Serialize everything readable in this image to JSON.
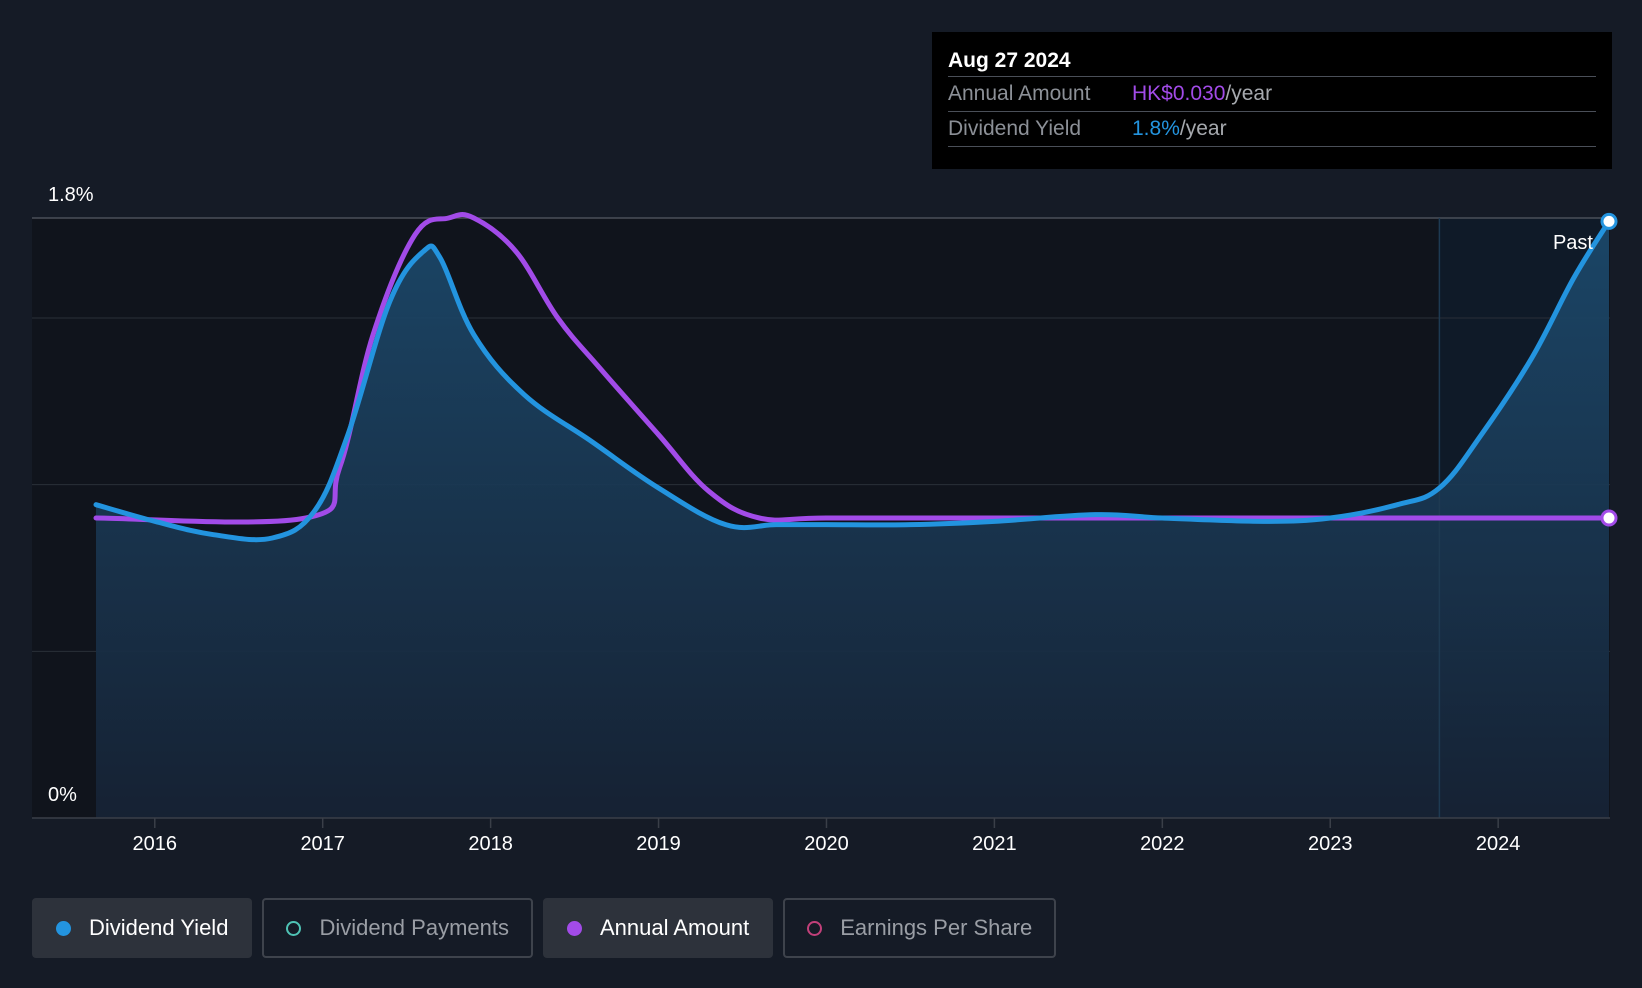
{
  "tooltip": {
    "date": "Aug 27 2024",
    "annual_label": "Annual Amount",
    "annual_value": "HK$0.030",
    "annual_unit": "/year",
    "yield_label": "Dividend Yield",
    "yield_value": "1.8%",
    "yield_unit": "/year"
  },
  "past_label": "Past",
  "legend": [
    {
      "label": "Dividend Yield",
      "color": "#2394df",
      "active": true,
      "filled": true
    },
    {
      "label": "Dividend Payments",
      "color": "#4fc3b5",
      "active": false,
      "filled": false
    },
    {
      "label": "Annual Amount",
      "color": "#a24be8",
      "active": true,
      "filled": true
    },
    {
      "label": "Earnings Per Share",
      "color": "#c2407a",
      "active": false,
      "filled": false
    }
  ],
  "colors": {
    "yield": "#2394df",
    "annual": "#a24be8",
    "background": "#151b26",
    "past_shade": "#0f1a28"
  },
  "chart_data": {
    "type": "line",
    "ylim": [
      0,
      1.8
    ],
    "xlim": [
      2015.65,
      2024.66
    ],
    "y_tick_labels": [
      "1.8%",
      "0%"
    ],
    "y_ticks": [
      1.8,
      0
    ],
    "gridlines": [
      1.8,
      1.5,
      1.0,
      0.5
    ],
    "x_ticks": [
      2016,
      2017,
      2018,
      2019,
      2020,
      2021,
      2022,
      2023,
      2024
    ],
    "x_tick_labels": [
      "2016",
      "2017",
      "2018",
      "2019",
      "2020",
      "2021",
      "2022",
      "2023",
      "2024"
    ],
    "past_region_start": 2023.65,
    "series": [
      {
        "name": "Dividend Yield",
        "x": [
          2015.65,
          2016.0,
          2016.35,
          2016.7,
          2016.95,
          2017.15,
          2017.4,
          2017.6,
          2017.7,
          2017.9,
          2018.2,
          2018.6,
          2019.0,
          2019.4,
          2019.7,
          2020.0,
          2020.5,
          2021.0,
          2021.6,
          2022.0,
          2022.6,
          2023.0,
          2023.4,
          2023.65,
          2023.9,
          2024.2,
          2024.45,
          2024.66
        ],
        "y": [
          0.94,
          0.89,
          0.85,
          0.84,
          0.92,
          1.15,
          1.55,
          1.7,
          1.68,
          1.45,
          1.27,
          1.13,
          0.99,
          0.88,
          0.88,
          0.88,
          0.88,
          0.89,
          0.91,
          0.9,
          0.89,
          0.9,
          0.94,
          0.99,
          1.15,
          1.38,
          1.62,
          1.79
        ]
      },
      {
        "name": "Annual Amount",
        "x": [
          2015.65,
          2016.9,
          2017.1,
          2017.3,
          2017.55,
          2017.75,
          2017.9,
          2018.15,
          2018.4,
          2018.65,
          2019.0,
          2019.3,
          2019.6,
          2020.0,
          2021.0,
          2022.0,
          2023.0,
          2024.0,
          2024.66
        ],
        "y": [
          0.9,
          0.9,
          1.05,
          1.45,
          1.75,
          1.8,
          1.8,
          1.7,
          1.5,
          1.35,
          1.15,
          0.98,
          0.9,
          0.9,
          0.9,
          0.9,
          0.9,
          0.9,
          0.9
        ]
      }
    ]
  }
}
